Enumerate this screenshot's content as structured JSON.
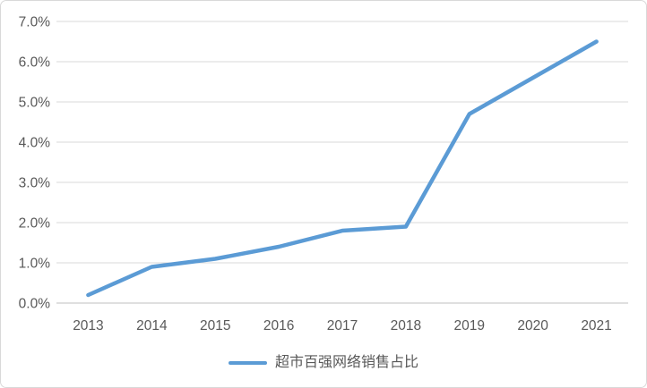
{
  "chart_data": {
    "type": "line",
    "title": "",
    "xlabel": "",
    "ylabel": "",
    "categories": [
      "2013",
      "2014",
      "2015",
      "2016",
      "2017",
      "2018",
      "2019",
      "2020",
      "2021"
    ],
    "series": [
      {
        "name": "超市百强网络销售占比",
        "values": [
          0.2,
          0.9,
          1.1,
          1.4,
          1.8,
          1.9,
          4.7,
          5.6,
          6.5
        ]
      }
    ],
    "ylim": [
      0,
      7
    ],
    "ytick_step": 1,
    "ytick_labels": [
      "0.0%",
      "1.0%",
      "2.0%",
      "3.0%",
      "4.0%",
      "5.0%",
      "6.0%",
      "7.0%"
    ],
    "grid": true,
    "legend_position": "bottom"
  },
  "colors": {
    "series_line": "#5B9BD5",
    "gridline": "#D9D9D9",
    "axis_line": "#BFBFBF",
    "tick_label_text": "#595959",
    "legend_text": "#595959",
    "chart_border": "#D9D9D9",
    "background": "#FFFFFF"
  }
}
